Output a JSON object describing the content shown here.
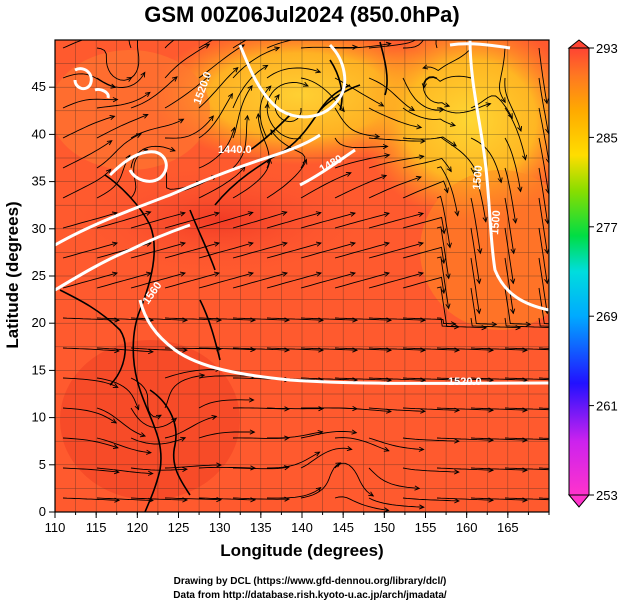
{
  "title": "GSM 00Z06Jul2024 (850.0hPa)",
  "x_label": "Longitude (degrees)",
  "y_label": "Latitude  (degrees)",
  "x_ticks": [
    "110",
    "115",
    "120",
    "125",
    "130",
    "135",
    "140",
    "145",
    "150",
    "155",
    "160",
    "165"
  ],
  "y_ticks": [
    "0",
    "5",
    "10",
    "15",
    "20",
    "25",
    "30",
    "35",
    "40",
    "45"
  ],
  "colorbar": {
    "ticks": [
      "293",
      "285",
      "277",
      "269",
      "261",
      "253"
    ],
    "min": 253,
    "max": 293,
    "colors": [
      "#ff33cc",
      "#cc22ee",
      "#6611ff",
      "#1133ff",
      "#0099ff",
      "#00dddd",
      "#00dd66",
      "#33dd00",
      "#aadd00",
      "#ffdd00",
      "#ffaa00",
      "#ff7722",
      "#ff4433"
    ]
  },
  "contour_labels": [
    "1440.0",
    "1480",
    "1560",
    "1520.0",
    "1520.0",
    "1500",
    "1500"
  ],
  "x_range": [
    110,
    170
  ],
  "y_range": [
    0,
    50
  ],
  "footer": {
    "line1": "Drawing by DCL (https://www.gfd-dennou.org/library/dcl/)",
    "line2": "Data from http://database.rish.kyoto-u.ac.jp/arch/jmadata/"
  },
  "colors": {
    "warm": "#ff5533",
    "hot": "#ee3322",
    "cool": "#ffaa22",
    "contour": "#ffffff",
    "stream": "#000000"
  }
}
